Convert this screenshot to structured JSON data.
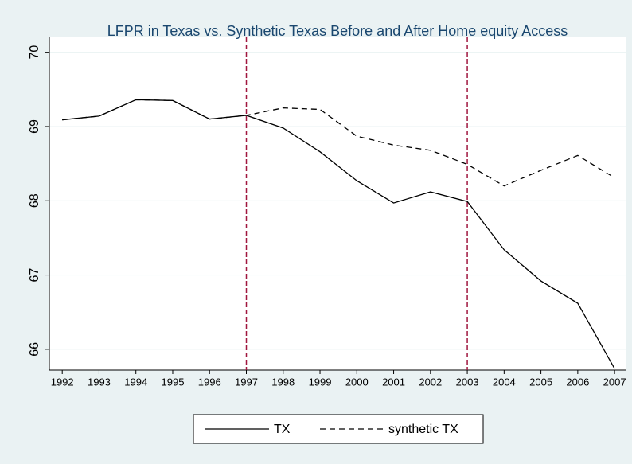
{
  "chart_data": {
    "type": "line",
    "title": "LFPR in Texas vs. Synthetic Texas Before and After Home equity Access",
    "x": [
      1992,
      1993,
      1994,
      1995,
      1996,
      1997,
      1998,
      1999,
      2000,
      2001,
      2002,
      2003,
      2004,
      2005,
      2006,
      2007
    ],
    "series": [
      {
        "name": "TX",
        "color": "#000000",
        "dash": "solid",
        "values": [
          69.09,
          69.14,
          69.36,
          69.35,
          69.1,
          69.15,
          68.98,
          68.66,
          68.27,
          67.97,
          68.12,
          67.99,
          67.34,
          66.92,
          66.62,
          65.74
        ]
      },
      {
        "name": "synthetic TX",
        "color": "#000000",
        "dash": "dashed",
        "values": [
          69.09,
          69.14,
          69.36,
          69.35,
          69.1,
          69.15,
          69.25,
          69.23,
          68.87,
          68.75,
          68.68,
          68.49,
          68.2,
          68.41,
          68.61,
          68.31
        ]
      }
    ],
    "vlines": [
      1997,
      2003
    ],
    "vline_color": "#a0163e",
    "xlim": [
      1991.65,
      2007.3
    ],
    "ylim": [
      65.72,
      70.2
    ],
    "xticks": [
      1992,
      1993,
      1994,
      1995,
      1996,
      1997,
      1998,
      1999,
      2000,
      2001,
      2002,
      2003,
      2004,
      2005,
      2006,
      2007
    ],
    "yticks": [
      66,
      67,
      68,
      69,
      70
    ],
    "grid": true,
    "legend": "bottom"
  }
}
